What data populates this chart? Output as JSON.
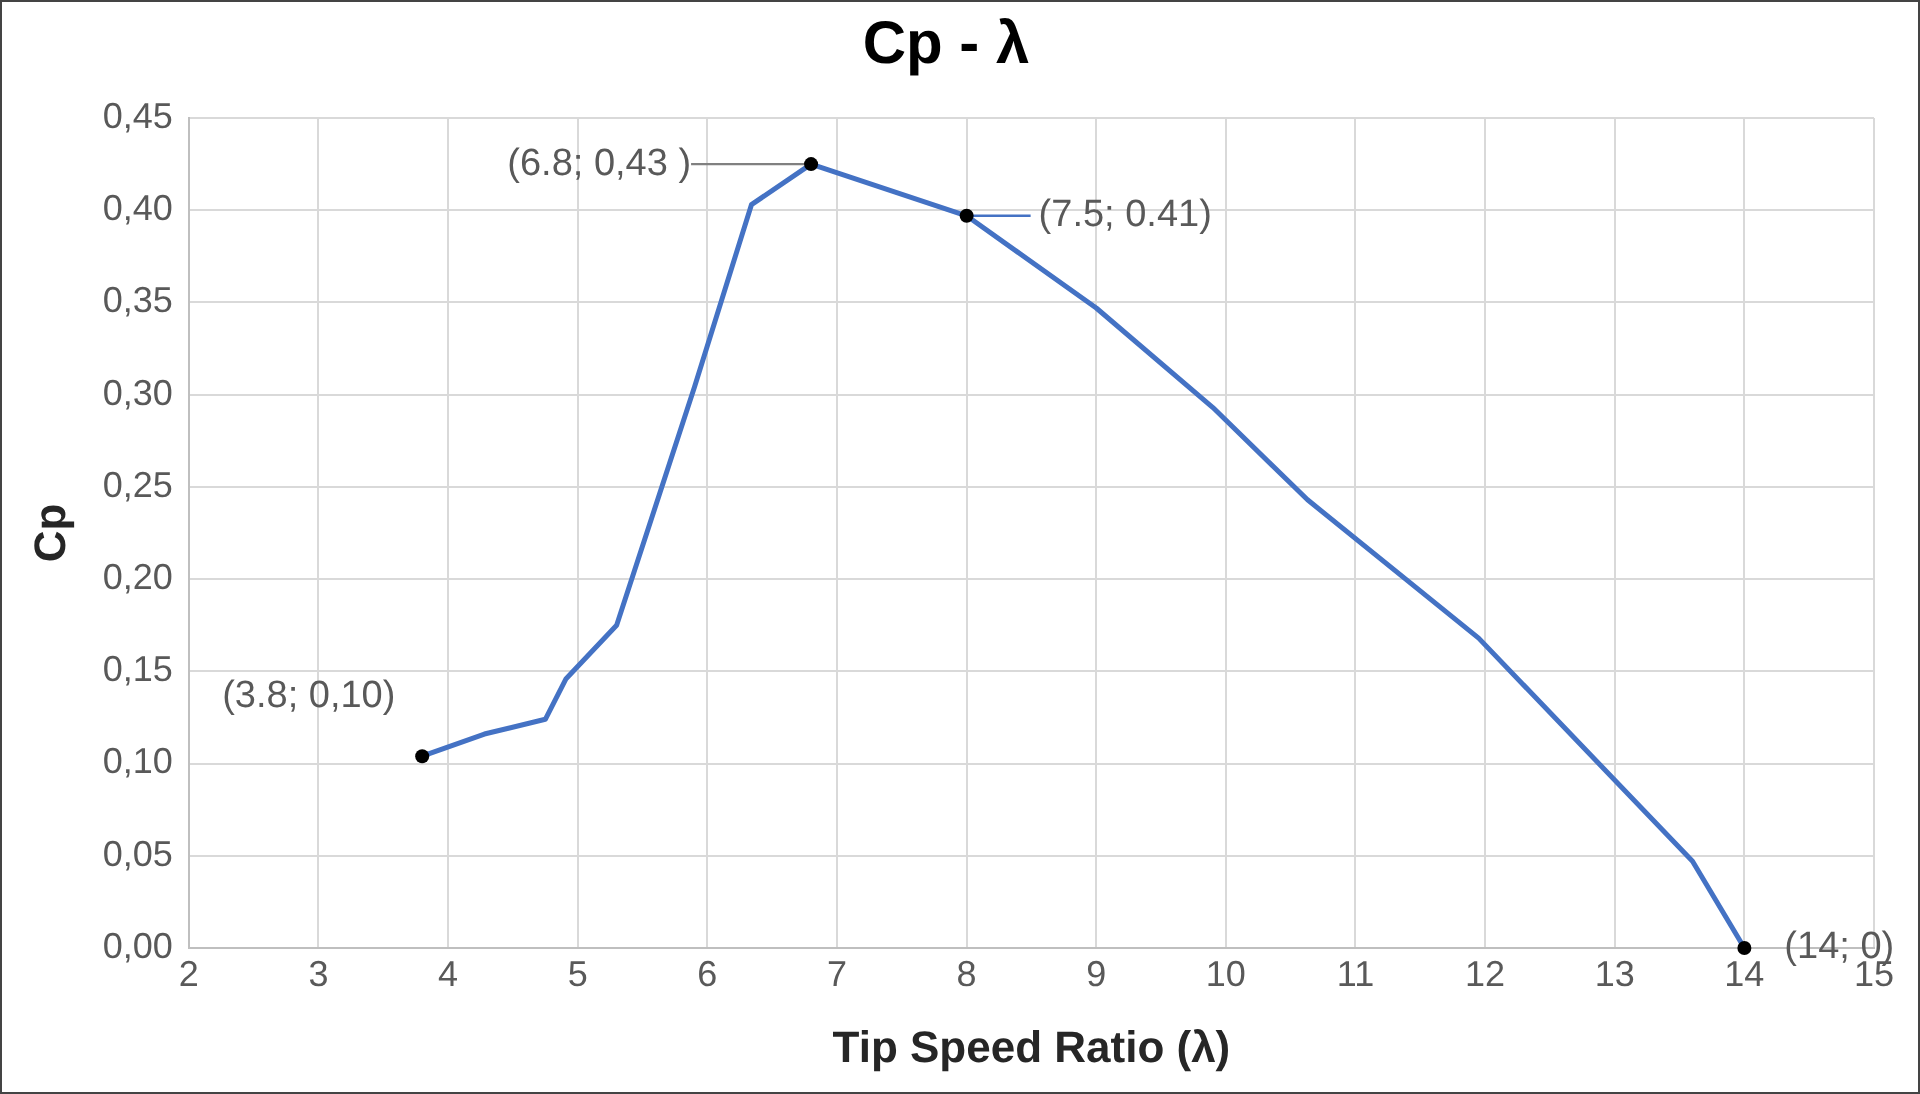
{
  "chart_data": {
    "type": "line",
    "title": "Cp - λ",
    "xlabel": "Tip Speed Ratio (λ)",
    "ylabel": "Cp",
    "series": [
      {
        "color": "#4472c4",
        "x": [
          3.8,
          4.28,
          4.75,
          4.91,
          5.3,
          5.9,
          6.34,
          6.8,
          8.0,
          9.0,
          9.9,
          10.63,
          11.95,
          13.6,
          14
        ],
        "values": [
          0.104,
          0.116,
          0.124,
          0.146,
          0.175,
          0.304,
          0.403,
          0.425,
          0.397,
          0.347,
          0.293,
          0.243,
          0.168,
          0.047,
          0
        ]
      }
    ],
    "xlim": [
      2,
      15
    ],
    "xticks": [
      2,
      3,
      4,
      5,
      6,
      7,
      8,
      9,
      10,
      11,
      12,
      13,
      14,
      15
    ],
    "ylim": [
      0,
      0.45
    ],
    "yticks": [
      {
        "value": 0,
        "label": "0,00"
      },
      {
        "value": 0.05,
        "label": "0,05"
      },
      {
        "value": 0.1,
        "label": "0,10"
      },
      {
        "value": 0.15,
        "label": "0,15"
      },
      {
        "value": 0.2,
        "label": "0,20"
      },
      {
        "value": 0.25,
        "label": "0,25"
      },
      {
        "value": 0.3,
        "label": "0,30"
      },
      {
        "value": 0.35,
        "label": "0,35"
      },
      {
        "value": 0.4,
        "label": "0,40"
      },
      {
        "value": 0.45,
        "label": "0,45"
      }
    ],
    "annotations": [
      {
        "text": "(3.8; 0,10)",
        "x": 3.8,
        "y": 0.104
      },
      {
        "text": "(6.8; 0,43 )",
        "x": 6.8,
        "y": 0.425
      },
      {
        "text": "(7.5; 0.41)",
        "x": 8.0,
        "y": 0.397
      },
      {
        "text": "(14; 0)",
        "x": 14,
        "y": 0
      }
    ],
    "grid": true,
    "legend": false,
    "marker": "none",
    "line_style": "solid"
  }
}
